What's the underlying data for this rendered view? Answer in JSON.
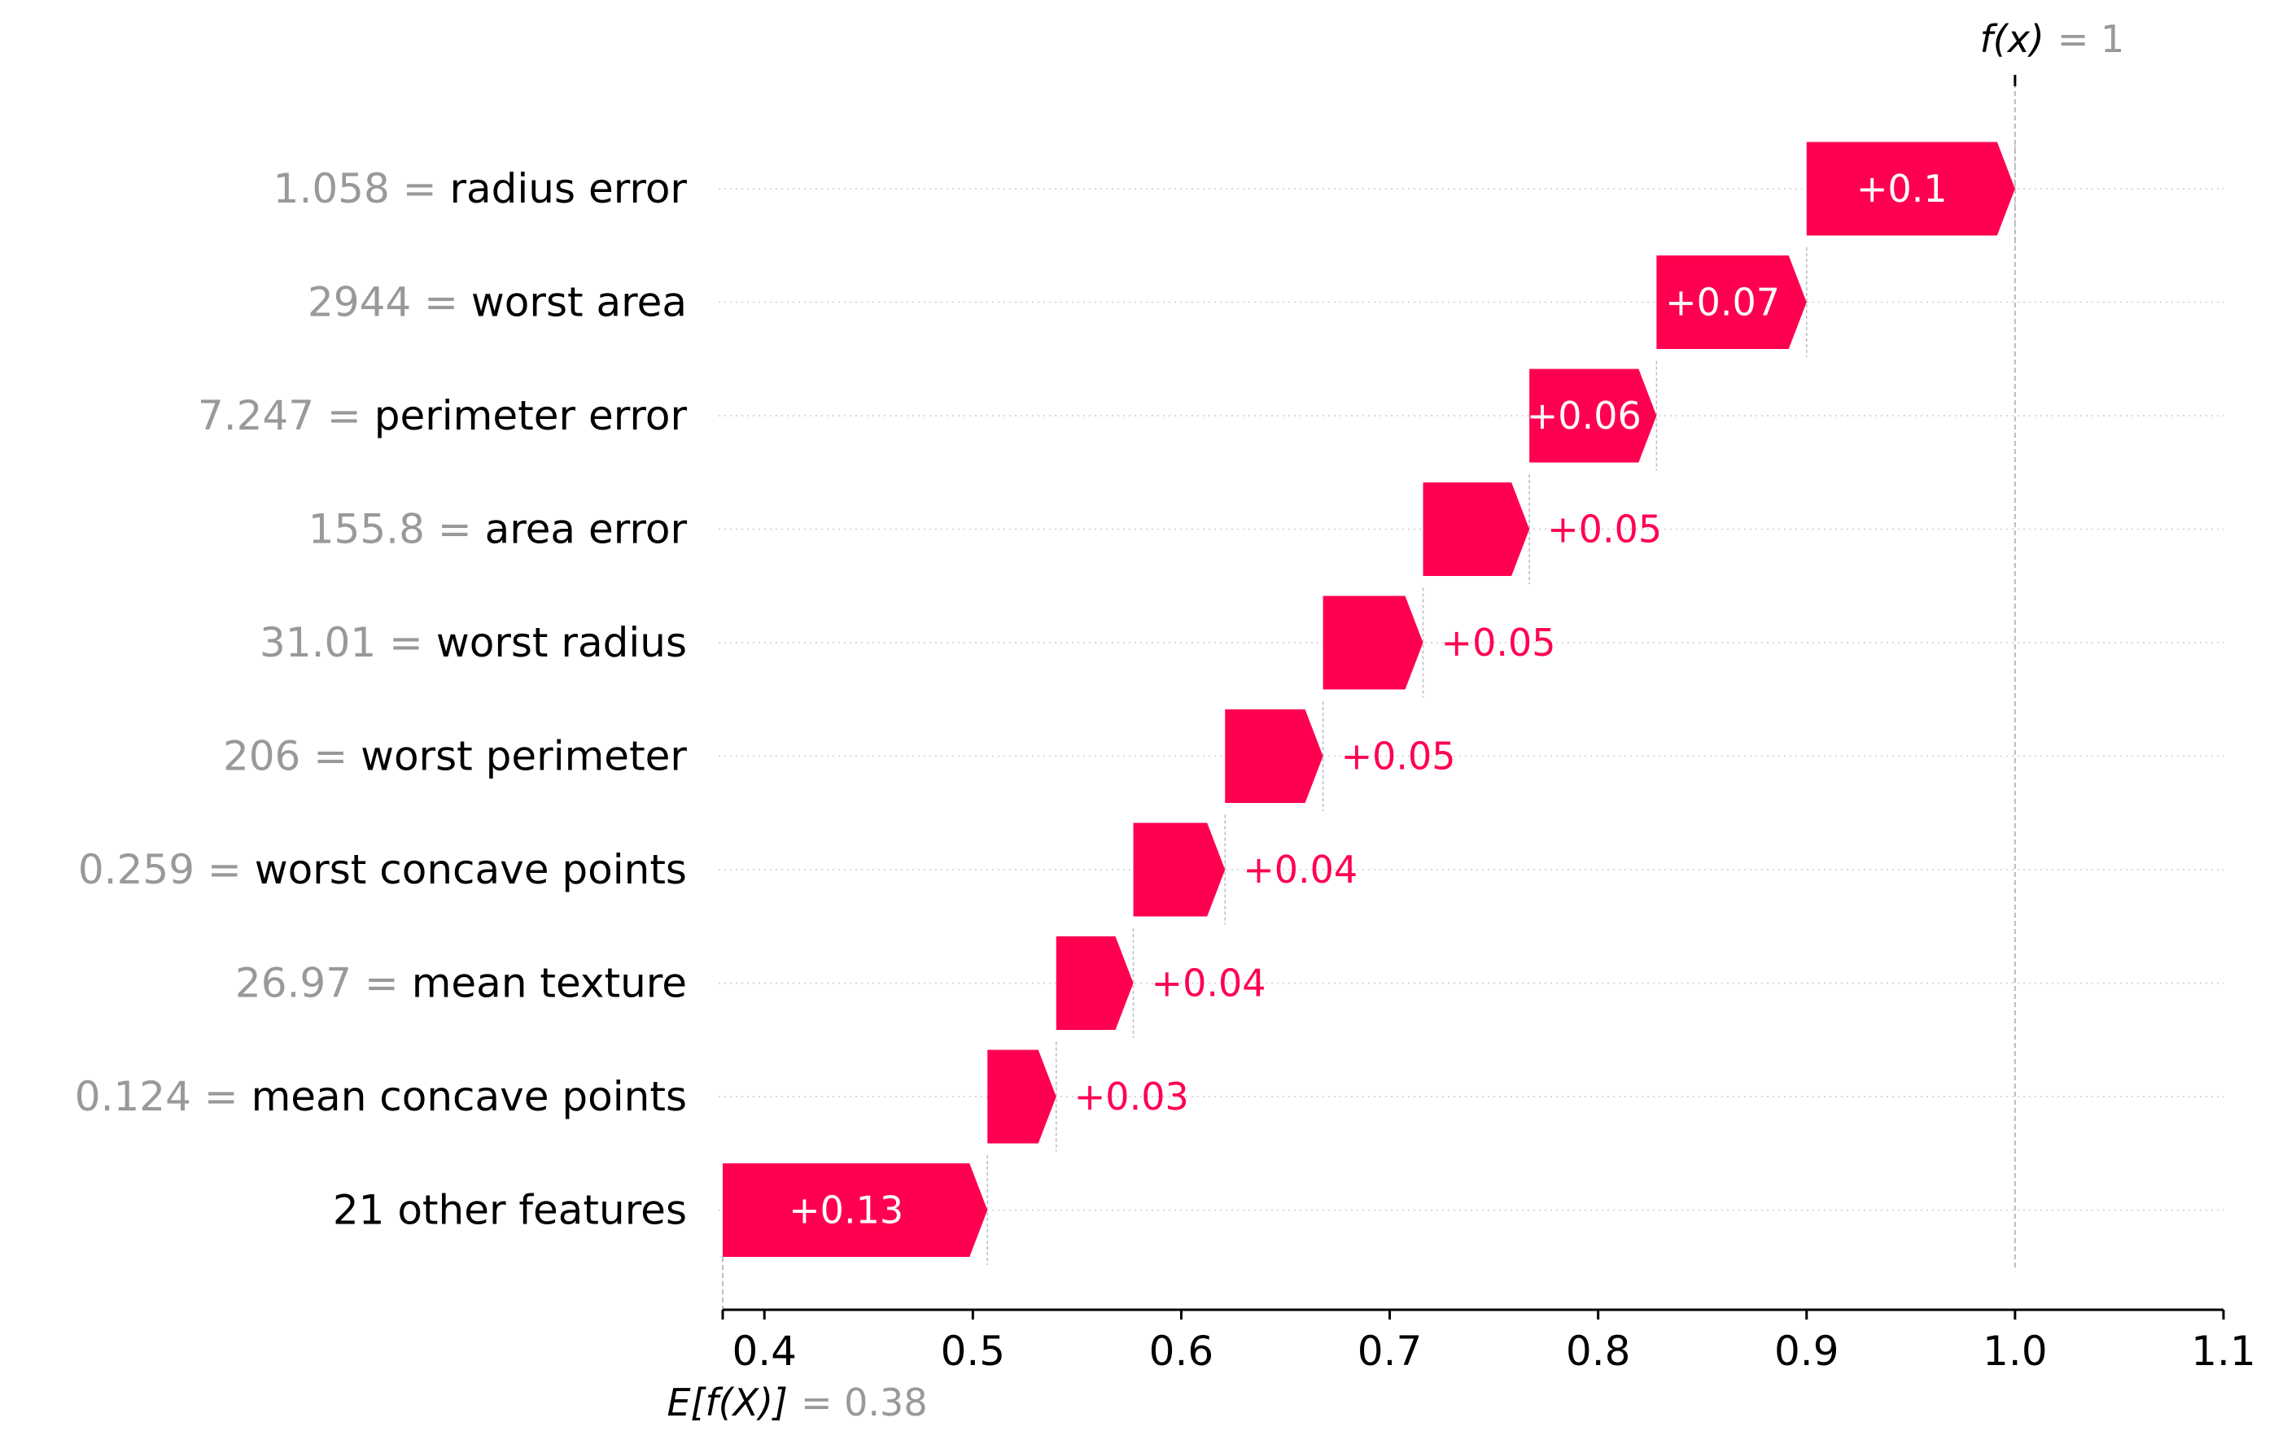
{
  "chart_data": {
    "type": "waterfall",
    "base_value": {
      "label": "E[f(X)]",
      "value_text": "= 0.38",
      "value": 0.38
    },
    "output_value": {
      "label": "f(x)",
      "value_text": "= 1",
      "value": 1
    },
    "features": [
      {
        "value": "1.058",
        "name": "radius error",
        "contribution": 0.1,
        "label": "+0.1",
        "start": 0.9,
        "end": 1.0
      },
      {
        "value": "2944",
        "name": "worst area",
        "contribution": 0.07,
        "label": "+0.07",
        "start": 0.828,
        "end": 0.9
      },
      {
        "value": "7.247",
        "name": "perimeter error",
        "contribution": 0.06,
        "label": "+0.06",
        "start": 0.767,
        "end": 0.828
      },
      {
        "value": "155.8",
        "name": "area error",
        "contribution": 0.05,
        "label": "+0.05",
        "start": 0.716,
        "end": 0.767
      },
      {
        "value": "31.01",
        "name": "worst radius",
        "contribution": 0.05,
        "label": "+0.05",
        "start": 0.668,
        "end": 0.716
      },
      {
        "value": "206",
        "name": "worst perimeter",
        "contribution": 0.05,
        "label": "+0.05",
        "start": 0.621,
        "end": 0.668
      },
      {
        "value": "0.259",
        "name": "worst concave points",
        "contribution": 0.04,
        "label": "+0.04",
        "start": 0.577,
        "end": 0.621
      },
      {
        "value": "26.97",
        "name": "mean texture",
        "contribution": 0.04,
        "label": "+0.04",
        "start": 0.54,
        "end": 0.577
      },
      {
        "value": "0.124",
        "name": "mean concave points",
        "contribution": 0.03,
        "label": "+0.03",
        "start": 0.507,
        "end": 0.54
      },
      {
        "value": "",
        "name": "21 other features",
        "contribution": 0.13,
        "label": "+0.13",
        "start": 0.38,
        "end": 0.507
      }
    ],
    "xlim": [
      0.38,
      1.1
    ],
    "xticks": [
      "0.4",
      "0.5",
      "0.6",
      "0.7",
      "0.8",
      "0.9",
      "1.0",
      "1.1"
    ],
    "xtick_values": [
      0.4,
      0.5,
      0.6,
      0.7,
      0.8,
      0.9,
      1.0,
      1.1
    ],
    "grid": "horizontal dotted per row",
    "colors": {
      "positive": "#ff0051",
      "value_text": "#999999",
      "label_text": "#000000",
      "inside_label": "#ffffff",
      "guide": "#bbbbbb"
    }
  }
}
